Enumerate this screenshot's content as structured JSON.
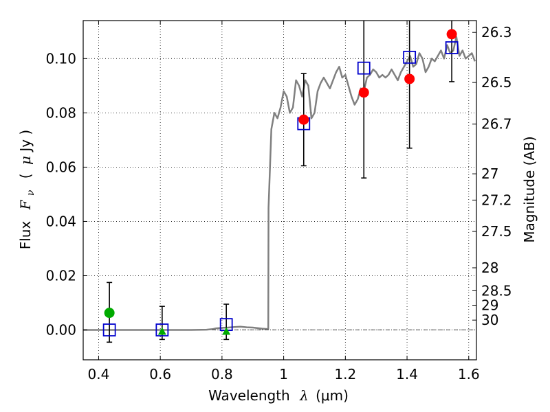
{
  "chart_data": {
    "type": "scatter",
    "xlabel_text": "Wavelength",
    "xlabel_symbol": "λ",
    "xlabel_unit": "(μm)",
    "ylabel_text": "Flux",
    "ylabel_symbol": "F",
    "ylabel_sub": "ν",
    "ylabel_unit_open": "(",
    "ylabel_unit_mu": "μ",
    "ylabel_unit_rest": "Jy )",
    "y2label": "Magnitude (AB)",
    "xlim": [
      0.35,
      1.625
    ],
    "ylim": [
      -0.011,
      0.114
    ],
    "grid": true,
    "xticks": [
      0.4,
      0.6,
      0.8,
      1.0,
      1.2,
      1.4,
      1.6
    ],
    "xtick_labels": [
      "0.4",
      "0.6",
      "0.8",
      "1",
      "1.2",
      "1.4",
      "1.6"
    ],
    "yticks": [
      0.0,
      0.02,
      0.04,
      0.06,
      0.08,
      0.1
    ],
    "ytick_labels": [
      "0.00",
      "0.02",
      "0.04",
      "0.06",
      "0.08",
      "0.10"
    ],
    "mag_ticks": [
      26.3,
      26.5,
      26.7,
      27,
      27.2,
      27.5,
      28,
      28.5,
      29,
      30
    ],
    "mag_tick_labels": [
      "26.3",
      "26.5",
      "26.7",
      "27",
      "27.2",
      "27.5",
      "28",
      "28.5",
      "29",
      "30"
    ],
    "sed_model": {
      "color": "#808080",
      "x": [
        0.35,
        0.4,
        0.45,
        0.5,
        0.55,
        0.6,
        0.65,
        0.7,
        0.75,
        0.77,
        0.78,
        0.8,
        0.82,
        0.84,
        0.86,
        0.88,
        0.9,
        0.93,
        0.95,
        0.951,
        0.96,
        0.97,
        0.98,
        0.99,
        1.0,
        1.01,
        1.02,
        1.03,
        1.04,
        1.05,
        1.06,
        1.07,
        1.08,
        1.09,
        1.1,
        1.11,
        1.12,
        1.13,
        1.14,
        1.15,
        1.16,
        1.17,
        1.18,
        1.19,
        1.2,
        1.21,
        1.22,
        1.23,
        1.24,
        1.25,
        1.26,
        1.27,
        1.28,
        1.29,
        1.3,
        1.31,
        1.32,
        1.33,
        1.34,
        1.35,
        1.36,
        1.37,
        1.38,
        1.39,
        1.4,
        1.41,
        1.42,
        1.43,
        1.44,
        1.45,
        1.46,
        1.47,
        1.48,
        1.49,
        1.5,
        1.51,
        1.52,
        1.53,
        1.54,
        1.55,
        1.56,
        1.57,
        1.58,
        1.59,
        1.6,
        1.61,
        1.62
      ],
      "y": [
        0.0,
        0.0,
        0.0,
        0.0,
        0.0,
        0.0,
        0.0,
        0.0,
        0.0001,
        0.0003,
        0.0006,
        0.0008,
        0.0009,
        0.0011,
        0.0012,
        0.001,
        0.0009,
        0.0005,
        0.0003,
        0.045,
        0.074,
        0.08,
        0.078,
        0.082,
        0.088,
        0.086,
        0.08,
        0.082,
        0.092,
        0.09,
        0.086,
        0.092,
        0.09,
        0.078,
        0.08,
        0.088,
        0.091,
        0.093,
        0.091,
        0.089,
        0.092,
        0.095,
        0.097,
        0.093,
        0.094,
        0.09,
        0.086,
        0.083,
        0.085,
        0.089,
        0.088,
        0.093,
        0.094,
        0.096,
        0.095,
        0.093,
        0.094,
        0.093,
        0.094,
        0.096,
        0.094,
        0.092,
        0.095,
        0.097,
        0.099,
        0.101,
        0.097,
        0.098,
        0.102,
        0.1,
        0.095,
        0.097,
        0.1,
        0.099,
        0.101,
        0.103,
        0.1,
        0.105,
        0.102,
        0.103,
        0.108,
        0.101,
        0.103,
        0.1,
        0.101,
        0.102,
        0.099
      ]
    },
    "series": [
      {
        "marker": "square-open",
        "color": "#0000cc",
        "x": [
          0.435,
          0.606,
          0.814,
          1.065,
          1.26,
          1.408,
          1.545
        ],
        "y": [
          0.0,
          0.0,
          0.002,
          0.076,
          0.0965,
          0.1005,
          0.104
        ]
      },
      {
        "marker": "circle",
        "color": "#ff0000",
        "x": [
          1.065,
          1.26,
          1.408,
          1.545
        ],
        "y": [
          0.0775,
          0.0875,
          0.0925,
          0.109
        ],
        "yerr_low": [
          0.0605,
          0.056,
          0.067,
          0.0915
        ],
        "yerr_high": [
          0.0945,
          0.118,
          0.118,
          0.118
        ]
      },
      {
        "marker": "circle",
        "color": "#00aa00",
        "x": [
          0.435
        ],
        "y": [
          0.0063
        ],
        "yerr_low": [
          -0.0045
        ],
        "yerr_high": [
          0.0175
        ]
      },
      {
        "marker": "triangle",
        "color": "#00aa00",
        "x": [
          0.606,
          0.814
        ],
        "y": [
          -0.0005,
          -0.0005
        ],
        "yerr_low": [
          -0.0035,
          -0.0035
        ],
        "yerr_high": [
          0.0087,
          0.0095
        ]
      }
    ]
  }
}
